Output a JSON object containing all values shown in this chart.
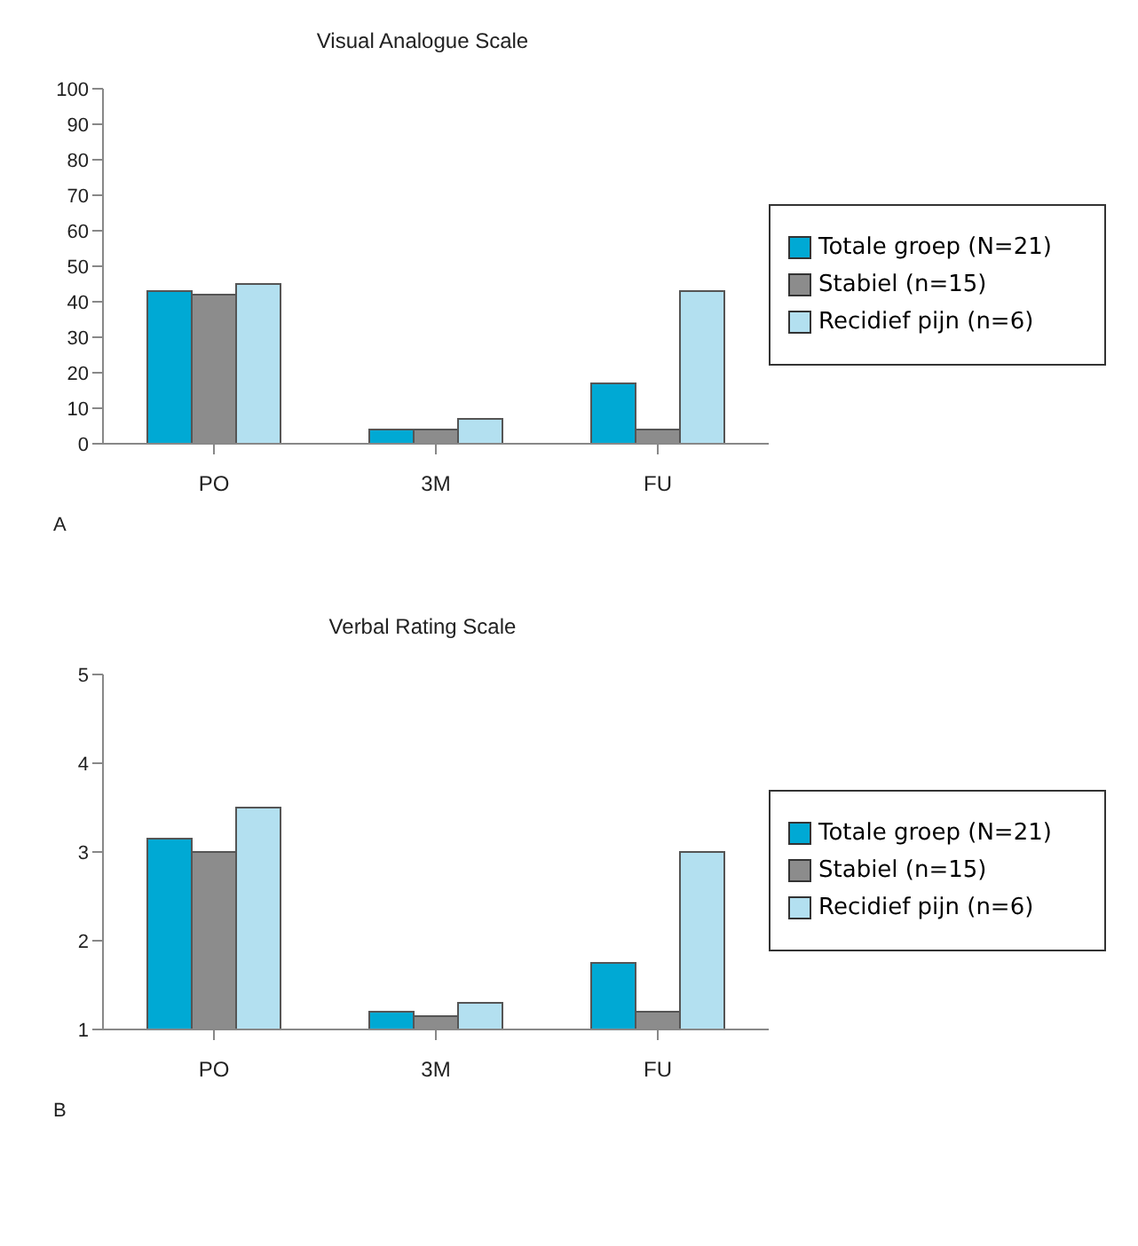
{
  "chart_data": [
    {
      "type": "bar",
      "title": "Visual Analogue Scale",
      "categories": [
        "PO",
        "3M",
        "FU"
      ],
      "series": [
        {
          "name": "Totale groep (N=21)",
          "color": "#00a9d4",
          "values": [
            43,
            4,
            17
          ]
        },
        {
          "name": "Stabiel (n=15)",
          "color": "#8c8c8c",
          "values": [
            42,
            4,
            4
          ]
        },
        {
          "name": "Recidief pijn (n=6)",
          "color": "#b3e0f0",
          "values": [
            45,
            7,
            43
          ]
        }
      ],
      "ylim": [
        0,
        100
      ],
      "yticks": [
        0,
        10,
        20,
        30,
        40,
        50,
        60,
        70,
        80,
        90,
        100
      ],
      "grid": false,
      "legend": "right",
      "annotations": [
        "A"
      ]
    },
    {
      "type": "bar",
      "title": "Verbal Rating Scale",
      "categories": [
        "PO",
        "3M",
        "FU"
      ],
      "series": [
        {
          "name": "Totale groep (N=21)",
          "color": "#00a9d4",
          "values": [
            3.15,
            1.2,
            1.75
          ]
        },
        {
          "name": "Stabiel (n=15)",
          "color": "#8c8c8c",
          "values": [
            3.0,
            1.15,
            1.2
          ]
        },
        {
          "name": "Recidief pijn (n=6)",
          "color": "#b3e0f0",
          "values": [
            3.5,
            1.3,
            3.0
          ]
        }
      ],
      "ylim": [
        1,
        5
      ],
      "yticks": [
        1,
        2,
        3,
        4,
        5
      ],
      "grid": false,
      "legend": "right",
      "annotations": [
        "B"
      ]
    }
  ]
}
